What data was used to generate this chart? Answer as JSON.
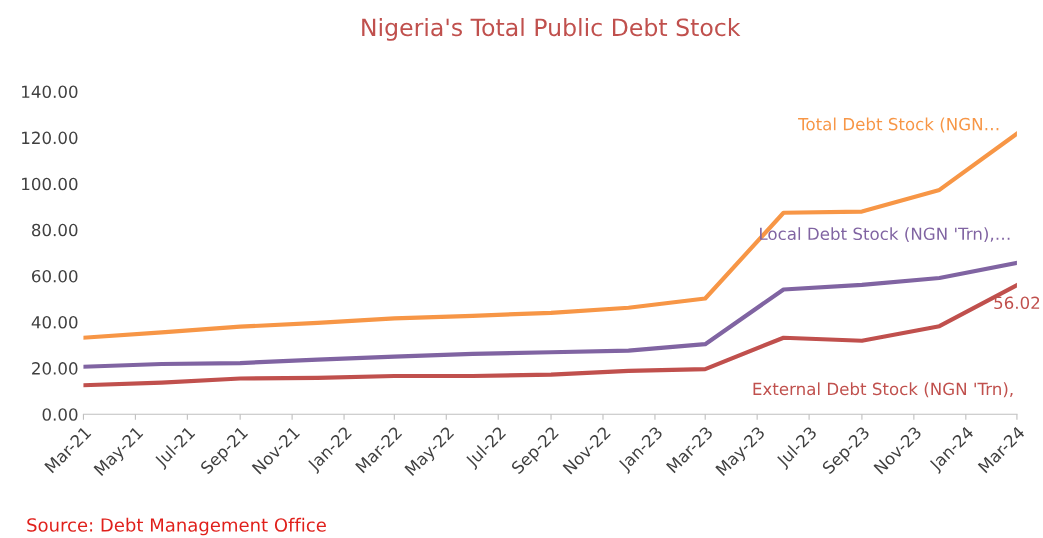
{
  "chart_data": {
    "type": "line",
    "title": "Nigeria's Total Public Debt Stock",
    "x": [
      "2021-03",
      "2021-06",
      "2021-09",
      "2021-12",
      "2022-03",
      "2022-06",
      "2022-09",
      "2022-12",
      "2023-03",
      "2023-06",
      "2023-09",
      "2023-12",
      "2024-03"
    ],
    "series": [
      {
        "name": "Total Debt Stock (NGN…",
        "color": "#f79646",
        "values": [
          33.2,
          35.5,
          38.0,
          39.6,
          41.6,
          42.7,
          44.0,
          46.2,
          50.2,
          87.4,
          87.9,
          97.3,
          121.7
        ]
      },
      {
        "name": "Local Debt Stock (NGN 'Trn),…",
        "color": "#8064a2",
        "values": [
          20.6,
          21.8,
          22.2,
          23.7,
          25.0,
          26.2,
          26.9,
          27.6,
          30.4,
          54.1,
          56.1,
          59.1,
          65.7
        ]
      },
      {
        "name": "External Debt Stock (NGN 'Trn),",
        "color": "#c0504d",
        "values": [
          12.6,
          13.7,
          15.5,
          15.8,
          16.6,
          16.6,
          17.2,
          18.8,
          19.6,
          33.2,
          31.9,
          38.2,
          56.02
        ],
        "value_labels": [
          null,
          null,
          null,
          null,
          null,
          null,
          null,
          null,
          null,
          null,
          null,
          null,
          "56.02"
        ]
      }
    ],
    "xlim": [
      "2021-03",
      "2024-03"
    ],
    "xticks": [
      {
        "value": "2021-03",
        "label": "Mar-21"
      },
      {
        "value": "2021-05",
        "label": "May-21"
      },
      {
        "value": "2021-07",
        "label": "Jul-21"
      },
      {
        "value": "2021-09",
        "label": "Sep-21"
      },
      {
        "value": "2021-11",
        "label": "Nov-21"
      },
      {
        "value": "2022-01",
        "label": "Jan-22"
      },
      {
        "value": "2022-03",
        "label": "Mar-22"
      },
      {
        "value": "2022-05",
        "label": "May-22"
      },
      {
        "value": "2022-07",
        "label": "Jul-22"
      },
      {
        "value": "2022-09",
        "label": "Sep-22"
      },
      {
        "value": "2022-11",
        "label": "Nov-22"
      },
      {
        "value": "2023-01",
        "label": "Jan-23"
      },
      {
        "value": "2023-03",
        "label": "Mar-23"
      },
      {
        "value": "2023-05",
        "label": "May-23"
      },
      {
        "value": "2023-07",
        "label": "Jul-23"
      },
      {
        "value": "2023-09",
        "label": "Sep-23"
      },
      {
        "value": "2023-11",
        "label": "Nov-23"
      },
      {
        "value": "2024-01",
        "label": "Jan-24"
      },
      {
        "value": "2024-03",
        "label": "Mar-24"
      }
    ],
    "ylim": [
      0,
      140
    ],
    "yticks": [
      {
        "value": 0,
        "label": "0.00"
      },
      {
        "value": 20,
        "label": "20.00"
      },
      {
        "value": 40,
        "label": "40.00"
      },
      {
        "value": 60,
        "label": "60.00"
      },
      {
        "value": 80,
        "label": "80.00"
      },
      {
        "value": 100,
        "label": "100.00"
      },
      {
        "value": 120,
        "label": "120.00"
      },
      {
        "value": 140,
        "label": "140.00"
      }
    ],
    "grid": false,
    "legend": false,
    "marker": "none",
    "line_style": "solid",
    "annotations": [
      "Source: Debt Management Office"
    ]
  }
}
